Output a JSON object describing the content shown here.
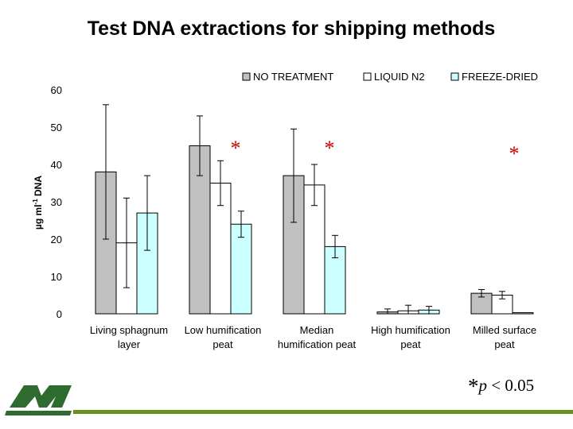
{
  "slide": {
    "title": "Test DNA extractions for shipping methods",
    "pvalue": {
      "asterisk": "*",
      "p": "p",
      "rest": " < 0.05"
    }
  },
  "colors": {
    "no_treatment": "#c0c0c0",
    "liquid_n2": "#ffffff",
    "freeze_dried": "#ccffff",
    "significance": "#cc0000",
    "logo": "#2e6b2e",
    "footer_line": "#6b8e23"
  },
  "chart_data": {
    "type": "bar",
    "title": "",
    "ylabel": "µg ml⁻¹ DNA",
    "ylim": [
      0,
      60
    ],
    "yticks": [
      0,
      10,
      20,
      30,
      40,
      50,
      60
    ],
    "categories": [
      [
        "Living sphagnum",
        "layer"
      ],
      [
        "Low humification",
        "peat"
      ],
      [
        "Median",
        "humification peat"
      ],
      [
        "High humification",
        "peat"
      ],
      [
        "Milled surface",
        "peat"
      ]
    ],
    "series": [
      {
        "name": "NO TREATMENT",
        "values": [
          38,
          45,
          37,
          0.5,
          5.5
        ],
        "errors": [
          18,
          8,
          12.5,
          0.8,
          1
        ]
      },
      {
        "name": "LIQUID N2",
        "values": [
          19,
          35,
          34.5,
          0.8,
          5
        ],
        "errors": [
          12,
          6,
          5.5,
          1.5,
          1
        ]
      },
      {
        "name": "FREEZE-DRIED",
        "values": [
          27,
          24,
          18,
          1,
          0.3
        ],
        "errors": [
          10,
          3.5,
          3,
          1,
          0
        ]
      }
    ],
    "legend_position": "top-right",
    "grid": false,
    "significance": [
      {
        "category_index": 1,
        "label": "*"
      },
      {
        "category_index": 2,
        "label": "*"
      },
      {
        "category_index": 4,
        "label": "*"
      }
    ]
  }
}
